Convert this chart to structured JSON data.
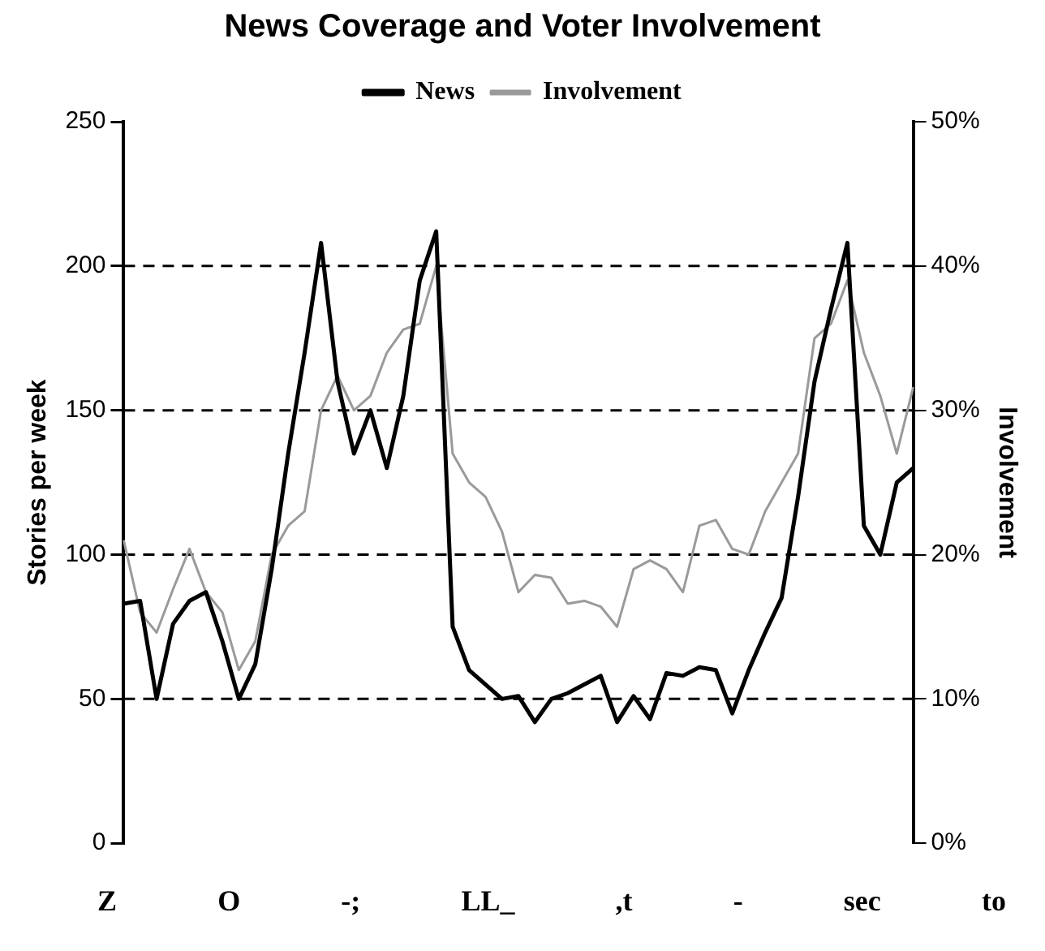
{
  "chart_data": {
    "type": "line",
    "title": "News Coverage and Voter Involvement",
    "ylabel": "Stories per week",
    "y2label": "Involvement",
    "categories": [
      null,
      null,
      null,
      null,
      null,
      null,
      null,
      null,
      null,
      null,
      null,
      null,
      null,
      null,
      null,
      null,
      null,
      null,
      null,
      null,
      null,
      null,
      null,
      null,
      null,
      null,
      null,
      null,
      null,
      null,
      null,
      null,
      null,
      null,
      null,
      null,
      null,
      null,
      null,
      null,
      null,
      null,
      null,
      null,
      null,
      null,
      null,
      null,
      null
    ],
    "series": [
      {
        "name": "News",
        "color": "#000000",
        "values": [
          83,
          84,
          50,
          76,
          84,
          87,
          70,
          50,
          62,
          95,
          135,
          170,
          208,
          160,
          135,
          150,
          130,
          155,
          195,
          212,
          75,
          60,
          55,
          50,
          51,
          42,
          50,
          52,
          55,
          58,
          42,
          51,
          43,
          59,
          58,
          61,
          60,
          45,
          60,
          73,
          85,
          120,
          160,
          185,
          208,
          110,
          100,
          125,
          130
        ]
      },
      {
        "name": "Involvement",
        "color": "#9a9a9a",
        "axis": "y2",
        "values": [
          21,
          16,
          14.6,
          17.6,
          20.4,
          17.4,
          16,
          12,
          14,
          20,
          22,
          23,
          30,
          32.4,
          30,
          31,
          34,
          35.6,
          36,
          40,
          27,
          25,
          24,
          21.6,
          17.4,
          18.6,
          18.4,
          16.6,
          16.8,
          16.4,
          15,
          19,
          19.6,
          19,
          17.4,
          22,
          22.4,
          20.4,
          20,
          23,
          25,
          27,
          35,
          36,
          39,
          34,
          31,
          27,
          31.6
        ]
      }
    ],
    "ylim": [
      0,
      250
    ],
    "yticks": [
      0,
      50,
      100,
      150,
      200,
      250
    ],
    "y2lim": [
      0,
      50
    ],
    "y2ticks": [
      {
        "value": 0,
        "label": "0%"
      },
      {
        "value": 10,
        "label": "10%"
      },
      {
        "value": 20,
        "label": "20%"
      },
      {
        "value": 30,
        "label": "30%"
      },
      {
        "value": 40,
        "label": "40%"
      },
      {
        "value": 50,
        "label": "50%"
      }
    ],
    "grid": "y",
    "legend": "top",
    "marker": "none",
    "line_style": "solid",
    "annotations": [
      "Z",
      "O",
      "-;",
      "LL_",
      ",t",
      "-",
      "sec",
      "to"
    ]
  }
}
